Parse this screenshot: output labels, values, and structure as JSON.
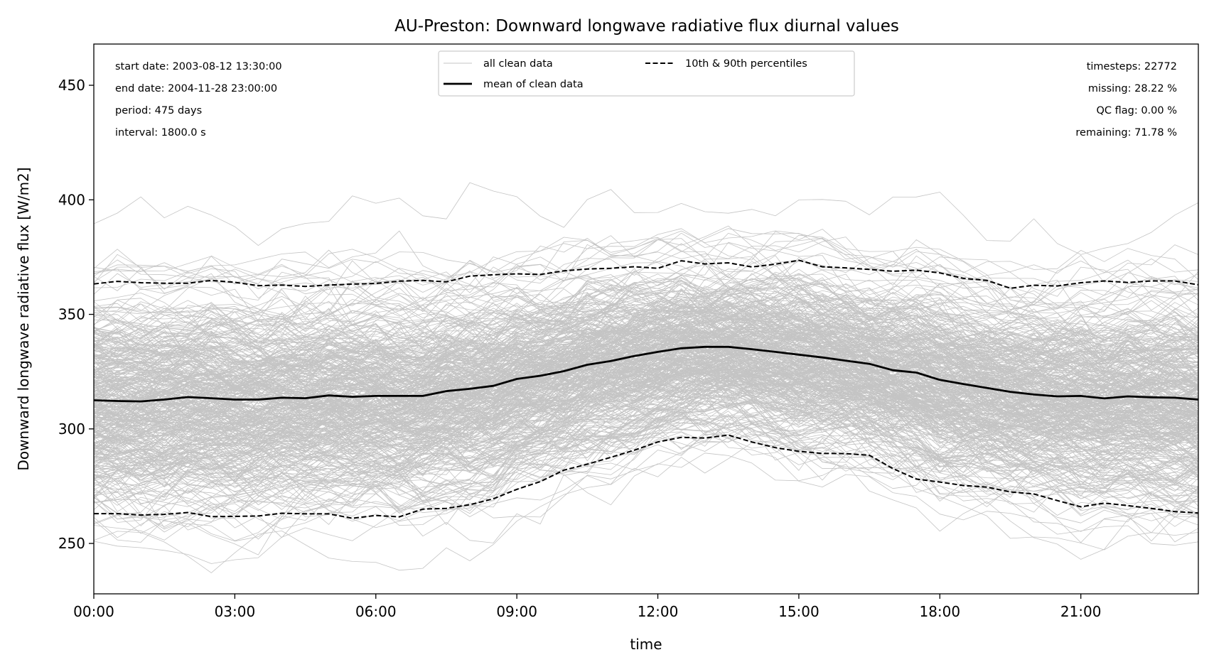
{
  "chart_data": {
    "type": "line",
    "title": "AU-Preston: Downward longwave radiative flux diurnal values",
    "xlabel": "time",
    "ylabel": "Downward longwave radiative flux [W/m2]",
    "xlim": [
      0,
      23.5
    ],
    "ylim": [
      228,
      468
    ],
    "x_ticks": [
      {
        "value": 0,
        "label": "00:00"
      },
      {
        "value": 3,
        "label": "03:00"
      },
      {
        "value": 6,
        "label": "06:00"
      },
      {
        "value": 9,
        "label": "09:00"
      },
      {
        "value": 12,
        "label": "12:00"
      },
      {
        "value": 15,
        "label": "15:00"
      },
      {
        "value": 18,
        "label": "18:00"
      },
      {
        "value": 21,
        "label": "21:00"
      }
    ],
    "y_ticks": [
      {
        "value": 250,
        "label": "250"
      },
      {
        "value": 300,
        "label": "300"
      },
      {
        "value": 350,
        "label": "350"
      },
      {
        "value": 400,
        "label": "400"
      },
      {
        "value": 450,
        "label": "450"
      }
    ],
    "grid": false,
    "legend": {
      "placement": "top-center",
      "entries": [
        {
          "label": "all clean data",
          "style": "thin-gray"
        },
        {
          "label": "mean of clean data",
          "style": "thick-black"
        },
        {
          "label": "10th & 90th percentiles",
          "style": "dashed-black"
        }
      ]
    },
    "stats_left": [
      "start date: 2003-08-12 13:30:00",
      "end date: 2004-11-28 23:00:00",
      "period: 475 days",
      "interval: 1800.0 s"
    ],
    "stats_right": [
      "timesteps: 22772",
      "missing: 28.22 %",
      "QC flag: 0.00 %",
      "remaining: 71.78 %"
    ],
    "x": [
      0,
      0.5,
      1,
      1.5,
      2,
      2.5,
      3,
      3.5,
      4,
      4.5,
      5,
      5.5,
      6,
      6.5,
      7,
      7.5,
      8,
      8.5,
      9,
      9.5,
      10,
      10.5,
      11,
      11.5,
      12,
      12.5,
      13,
      13.5,
      14,
      14.5,
      15,
      15.5,
      16,
      16.5,
      17,
      17.5,
      18,
      18.5,
      19,
      19.5,
      20,
      20.5,
      21,
      21.5,
      22,
      22.5,
      23,
      23.5
    ],
    "series": [
      {
        "name": "mean of clean data",
        "color": "#000000",
        "values": [
          312.5,
          312.2,
          312,
          312.8,
          313.9,
          313.4,
          312.8,
          312.8,
          313.6,
          313.4,
          314.6,
          314,
          314.4,
          314.4,
          314.4,
          316.5,
          317.5,
          318.8,
          321.8,
          323.2,
          325.2,
          328,
          329.6,
          331.8,
          333.6,
          335.2,
          335.8,
          335.8,
          334.8,
          333.6,
          332.4,
          331.2,
          329.8,
          328.4,
          325.6,
          324.6,
          321.4,
          319.6,
          317.9,
          316.2,
          315,
          314.2,
          314.4,
          313.3,
          314.2,
          313.8,
          313.6,
          312.8
        ]
      },
      {
        "name": "10th & 90th percentiles",
        "color": "#000000",
        "values": [
          363.3,
          364.4,
          363.8,
          363.6,
          363.6,
          364.8,
          364,
          362.5,
          362.8,
          362.2,
          362.8,
          363.2,
          363.5,
          364.5,
          364.8,
          364.2,
          366.7,
          367.3,
          367.7,
          367.4,
          369,
          369.8,
          370.1,
          370.8,
          370.1,
          373.4,
          372,
          372.5,
          370.7,
          371.9,
          373.6,
          370.8,
          370.3,
          369.6,
          368.8,
          369.3,
          368.1,
          365.7,
          364.8,
          361.4,
          362.7,
          362.4,
          363.8,
          364.6,
          363.9,
          364.6,
          364.6,
          362.9
        ]
      },
      {
        "name": "10th & 90th percentiles",
        "color": "#000000",
        "values": [
          263,
          263,
          262.4,
          262.7,
          263.5,
          261.7,
          261.8,
          262,
          263.2,
          262.9,
          262.9,
          261,
          262.2,
          261.6,
          265,
          265.3,
          266.9,
          269.5,
          273.6,
          277,
          282,
          284.6,
          287.6,
          290.7,
          294.3,
          296.3,
          296,
          297.3,
          294.3,
          291.8,
          290.2,
          289.3,
          289.2,
          288.5,
          282.7,
          278.1,
          276.8,
          275.3,
          274.6,
          272.5,
          271.6,
          268.7,
          266,
          267.6,
          266.5,
          265.3,
          263.9,
          263.3
        ]
      }
    ]
  }
}
